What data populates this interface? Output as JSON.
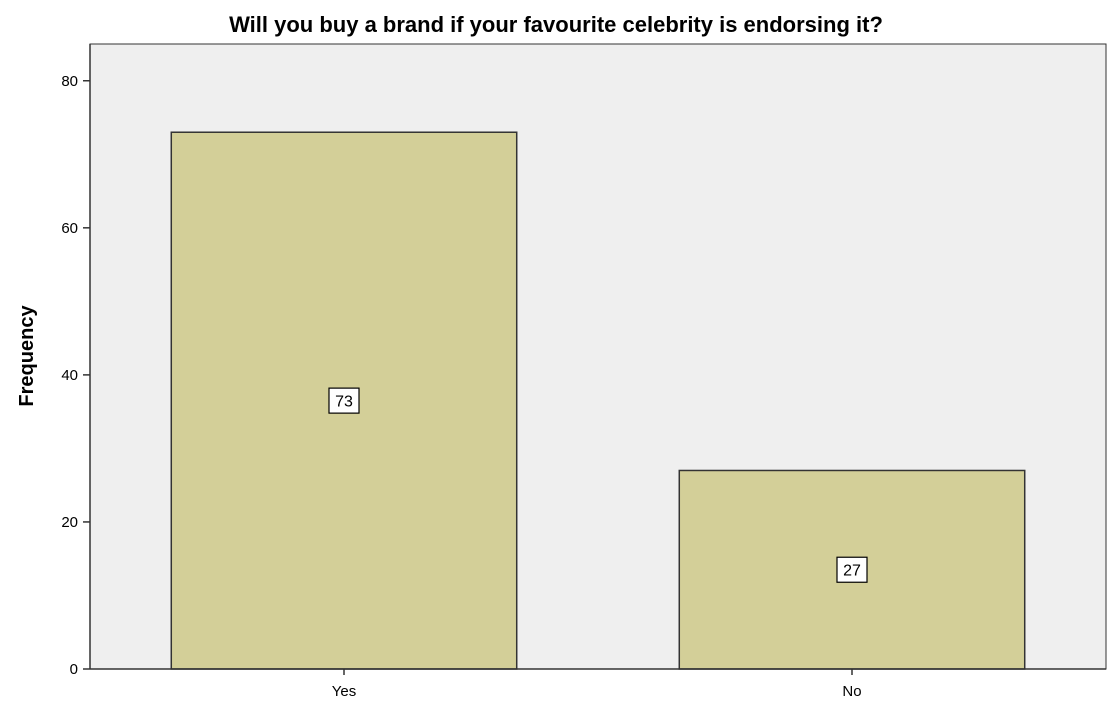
{
  "chart_data": {
    "type": "bar",
    "title": "Will you buy a brand if your favourite celebrity is endorsing it?",
    "xlabel": "",
    "ylabel": "Frequency",
    "categories": [
      "Yes",
      "No"
    ],
    "values": [
      73,
      27
    ],
    "data_labels": [
      "73",
      "27"
    ],
    "ylim": [
      0,
      85
    ],
    "yticks": [
      0,
      20,
      40,
      60,
      80
    ],
    "ytick_labels": [
      "0",
      "20",
      "40",
      "60",
      "80"
    ],
    "grid": false,
    "legend": "none",
    "colors": {
      "bar_fill": "#d3cf98",
      "bar_stroke": "#333333",
      "plot_background": "#efefef",
      "axis": "#333333"
    }
  }
}
